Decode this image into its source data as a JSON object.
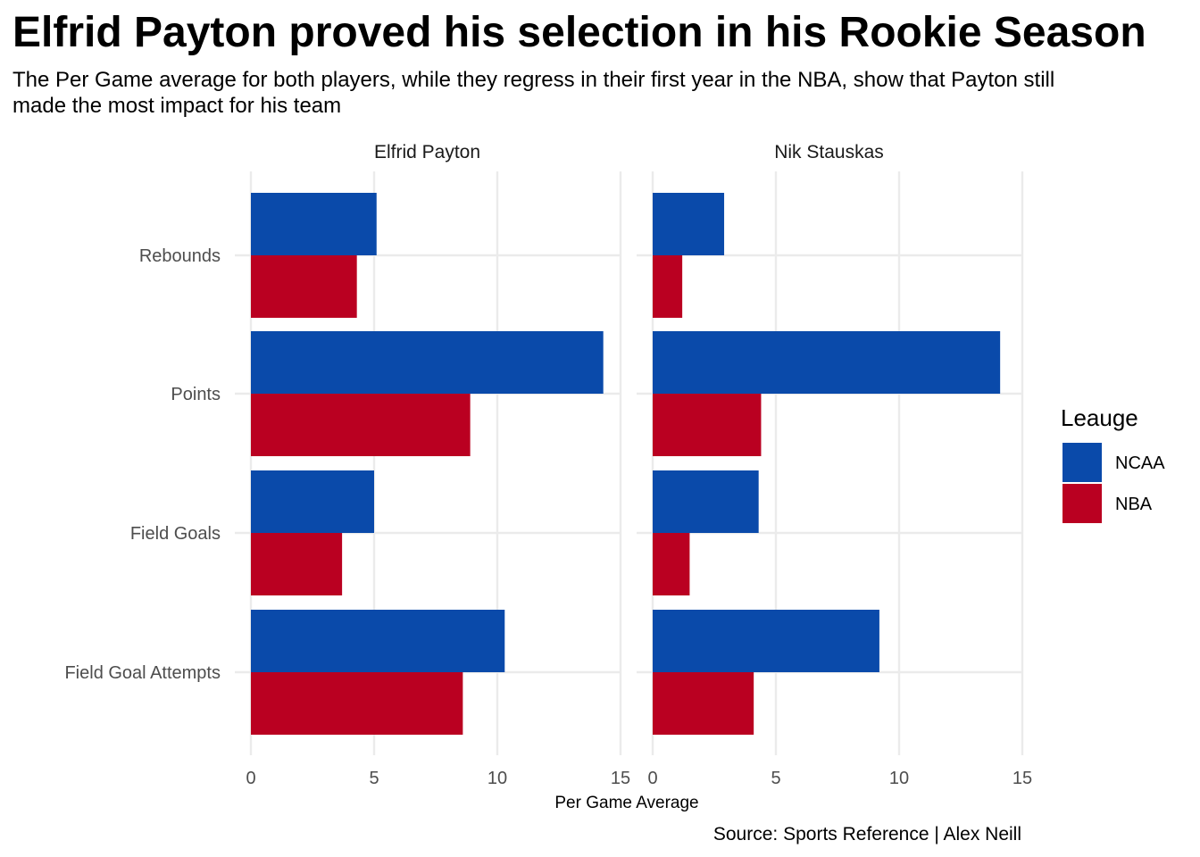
{
  "chart_data": {
    "type": "bar",
    "orientation": "horizontal",
    "title": "Elfrid Payton proved his selection in his Rookie Season",
    "subtitle": "The Per Game average for both players, while they regress in their first year in the NBA, show that Payton still made the most impact for his team",
    "xlabel": "Per Game Average",
    "caption": "Source: Sports Reference | Alex Neill",
    "categories": [
      "Rebounds",
      "Points",
      "Field Goals",
      "Field Goal Attempts"
    ],
    "xlim": [
      0,
      15
    ],
    "x_ticks": [
      "0",
      "5",
      "10",
      "15"
    ],
    "grid": true,
    "legend": {
      "title": "Leauge",
      "placement": "right",
      "entries": [
        {
          "name": "NCAA",
          "color": "#0A4AAA"
        },
        {
          "name": "NBA",
          "color": "#BA0021"
        }
      ]
    },
    "panels": [
      {
        "name": "Elfrid Payton",
        "series": [
          {
            "name": "NCAA",
            "values": [
              5.1,
              14.3,
              5.0,
              10.3
            ]
          },
          {
            "name": "NBA",
            "values": [
              4.3,
              8.9,
              3.7,
              8.6
            ]
          }
        ]
      },
      {
        "name": "Nik Stauskas",
        "series": [
          {
            "name": "NCAA",
            "values": [
              2.9,
              14.1,
              4.3,
              9.2
            ]
          },
          {
            "name": "NBA",
            "values": [
              1.2,
              4.4,
              1.5,
              4.1
            ]
          }
        ]
      }
    ]
  }
}
